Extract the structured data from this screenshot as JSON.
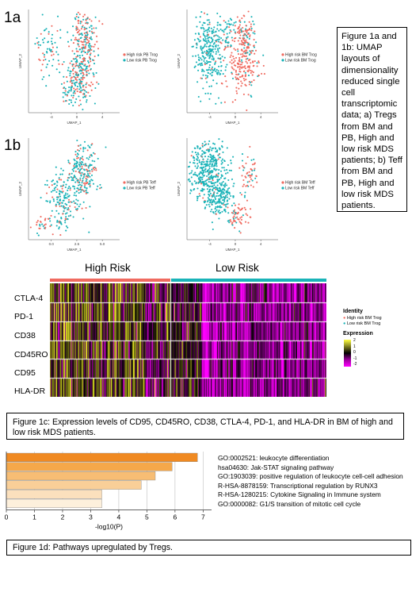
{
  "panel_labels": {
    "a": "1a",
    "b": "1b"
  },
  "umaps": [
    {
      "id": "pb_trog",
      "xlabel": "UMAP_1",
      "ylabel": "UMAP_2",
      "xticks": [
        "-4",
        "0",
        "4"
      ],
      "yticks": [],
      "legend": [
        {
          "label": "High risk PB Trog",
          "color": "#f06a5f"
        },
        {
          "label": "Low risk PB Trog",
          "color": "#1ab3b8"
        }
      ]
    },
    {
      "id": "bm_trog",
      "xlabel": "UMAP_1",
      "ylabel": "UMAP_2",
      "xticks": [
        "-4",
        "0",
        "4"
      ],
      "yticks": [],
      "legend": [
        {
          "label": "High risk BM Trog",
          "color": "#f06a5f"
        },
        {
          "label": "Low risk BM Trog",
          "color": "#1ab3b8"
        }
      ]
    },
    {
      "id": "pb_teff",
      "xlabel": "UMAP_1",
      "ylabel": "UMAP_2",
      "xticks": [
        "0.0",
        "2.5",
        "5.0"
      ],
      "yticks": [],
      "legend": [
        {
          "label": "High risk PB Teff",
          "color": "#f06a5f"
        },
        {
          "label": "Low risk PB Teff",
          "color": "#1ab3b8"
        }
      ]
    },
    {
      "id": "bm_teff",
      "xlabel": "UMAP_1",
      "ylabel": "UMAP_2",
      "xticks": [
        "-4",
        "0",
        "4"
      ],
      "yticks": [],
      "legend": [
        {
          "label": "High risk BM Teff",
          "color": "#f06a5f"
        },
        {
          "label": "Low risk BM Teff",
          "color": "#1ab3b8"
        }
      ]
    }
  ],
  "caption_1ab": "Figure 1a and 1b: UMAP layouts of dimensionality reduced single cell transcriptomic data; a) Tregs from BM and PB, High and low risk MDS patients; b) Teff from BM and PB, High and low risk MDS patients.",
  "heatmap": {
    "groups": [
      {
        "label": "High Risk",
        "color": "#f06a5f"
      },
      {
        "label": "Low Risk",
        "color": "#1ab3b8"
      }
    ],
    "genes": [
      "CTLA-4",
      "PD-1",
      "CD38",
      "CD45RO",
      "CD95",
      "HLA-DR"
    ],
    "legend_identity_title": "Identity",
    "legend_identity": [
      {
        "label": "High risk BM Trog",
        "color": "#f06a5f"
      },
      {
        "label": "Low risk BM Trog",
        "color": "#1ab3b8"
      }
    ],
    "legend_expression_title": "Expression",
    "expression_ticks": [
      "2",
      "1",
      "0",
      "-1",
      "-2"
    ]
  },
  "caption_1c": "Figure 1c: Expression levels of CD95, CD45RO, CD38, CTLA-4, PD-1, and HLA-DR in BM of high and low risk MDS patients.",
  "chart_data": {
    "type": "bar",
    "orientation": "horizontal",
    "categories": [
      "GO:0002521: leukocyte differentiation",
      "hsa04630: Jak-STAT signaling pathway",
      "GO:1903039: positive regulation of leukocyte cell-cell adhesion",
      "R-HSA-8878159: Transcriptional regulation by RUNX3",
      "R-HSA-1280215: Cytokine Signaling in Immune system",
      "GO:0000082: G1/S transition of mitotic cell cycle"
    ],
    "values": [
      6.8,
      5.9,
      5.3,
      4.8,
      3.4,
      3.4
    ],
    "colors": [
      "#f08a22",
      "#f5a84a",
      "#f7bd74",
      "#f9cf98",
      "#fbe0bd",
      "#fdf0dc"
    ],
    "xlabel": "-log10(P)",
    "xticks": [
      "0",
      "1",
      "2",
      "3",
      "4",
      "5",
      "6",
      "7"
    ],
    "xlim": [
      0,
      7.3
    ],
    "grid": true
  },
  "caption_1d": "Figure 1d: Pathways upregulated by Tregs."
}
